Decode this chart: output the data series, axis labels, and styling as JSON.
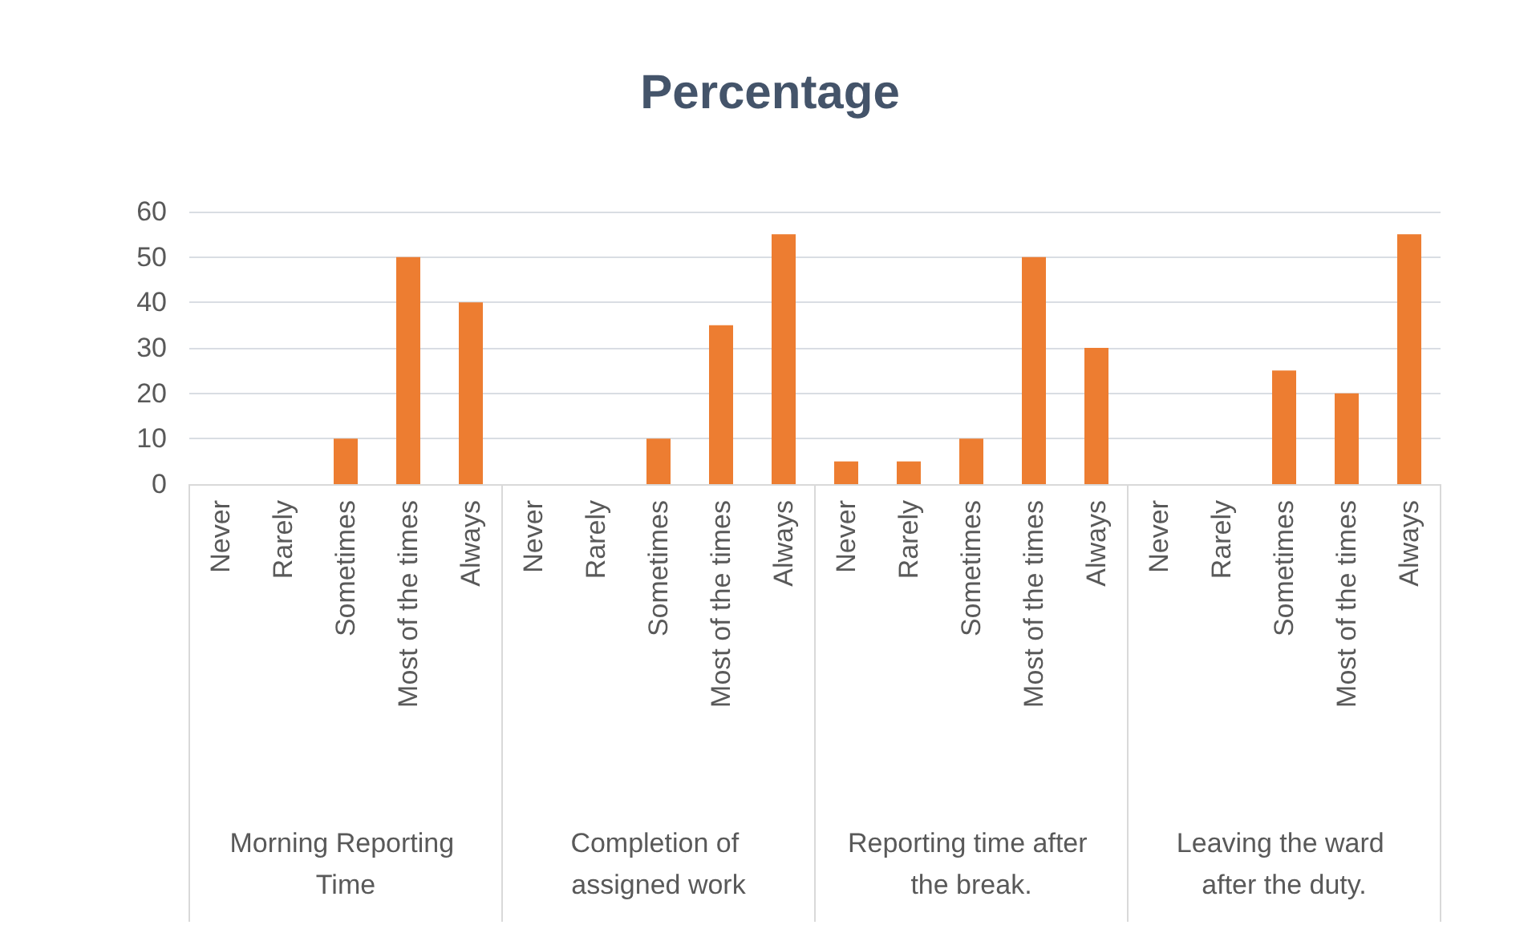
{
  "chart_data": {
    "type": "bar",
    "title": "Percentage",
    "categories": [
      "Never",
      "Rarely",
      "Sometimes",
      "Most of the times",
      "Always",
      "Never",
      "Rarely",
      "Sometimes",
      "Most of the times",
      "Always",
      "Never",
      "Rarely",
      "Sometimes",
      "Most of the times",
      "Always",
      "Never",
      "Rarely",
      "Sometimes",
      "Most of the times",
      "Always"
    ],
    "values": [
      0,
      0,
      10,
      50,
      40,
      0,
      0,
      10,
      35,
      55,
      5,
      5,
      10,
      50,
      30,
      0,
      0,
      25,
      20,
      55
    ],
    "color": "#ed7d31",
    "annotations": [
      "Morning Reporting Time",
      "Completion of assigned work",
      "Reporting time after the break.",
      "Leaving the ward after the duty."
    ],
    "ylim": [
      0,
      60
    ],
    "yticks": [
      0,
      10,
      20,
      30,
      40,
      50,
      60
    ],
    "grid": "y"
  }
}
